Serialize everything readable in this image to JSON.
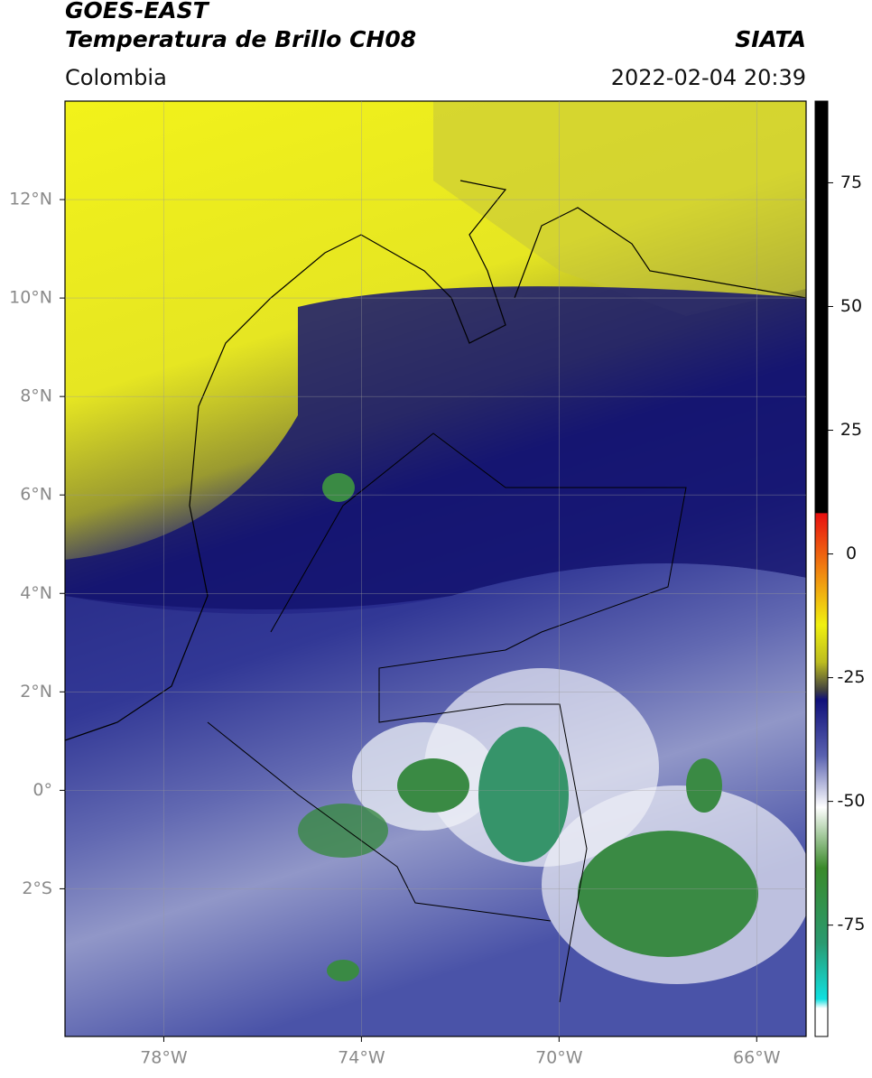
{
  "header": {
    "title": "GOES-EAST",
    "subtitle": "Temperatura de Brillo CH08",
    "region": "Colombia",
    "source": "SIATA",
    "datetime": "2022-02-04 20:39"
  },
  "map": {
    "xlim": [
      -80,
      -65
    ],
    "ylim": [
      -5,
      14
    ],
    "xticks": [
      {
        "value": -78,
        "label": "78°W"
      },
      {
        "value": -74,
        "label": "74°W"
      },
      {
        "value": -70,
        "label": "70°W"
      },
      {
        "value": -66,
        "label": "66°W"
      }
    ],
    "yticks": [
      {
        "value": -2,
        "label": "2°S"
      },
      {
        "value": 0,
        "label": "0°"
      },
      {
        "value": 2,
        "label": "2°N"
      },
      {
        "value": 4,
        "label": "4°N"
      },
      {
        "value": 6,
        "label": "6°N"
      },
      {
        "value": 8,
        "label": "8°N"
      },
      {
        "value": 10,
        "label": "10°N"
      },
      {
        "value": 12,
        "label": "12°N"
      }
    ],
    "grid": true
  },
  "colorbar": {
    "lim": [
      -97.5,
      91.5
    ],
    "ticks": [
      75,
      50,
      25,
      0,
      -25,
      -50,
      -75
    ]
  }
}
